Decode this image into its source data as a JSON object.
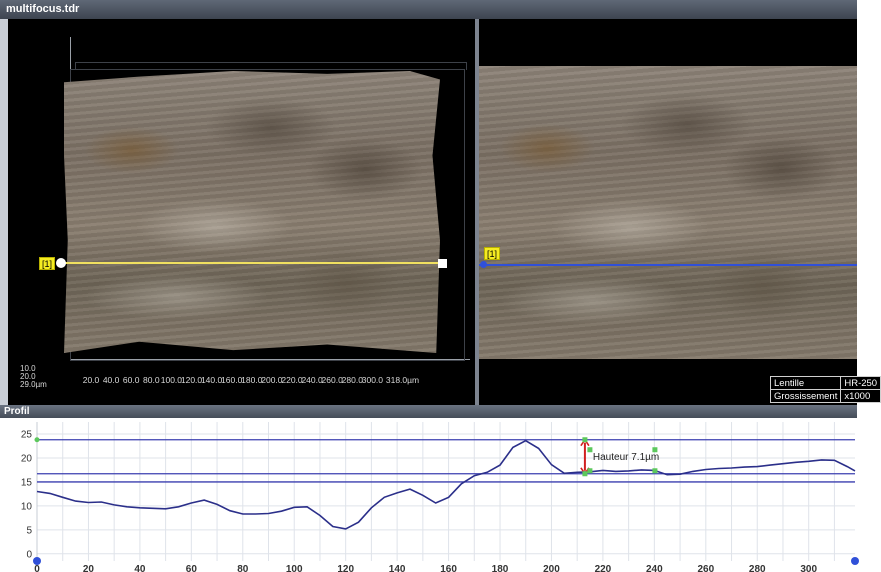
{
  "window": {
    "title": "multifocus.tdr"
  },
  "viewer3d": {
    "x_ticks": [
      "20.0",
      "40.0",
      "60.0",
      "80.0",
      "100.0",
      "120.0",
      "140.0",
      "160.0",
      "180.0",
      "200.0",
      "220.0",
      "240.0",
      "260.0",
      "280.0",
      "300.0",
      "318.0µm"
    ],
    "origin_label_top": "10.0",
    "origin_label_mid": "20.0",
    "origin_label_bottom": "29.0µm",
    "marker_label": "[1]"
  },
  "view2d": {
    "marker_label": "[1]",
    "info": [
      {
        "key": "Lentille",
        "value": "HR-250"
      },
      {
        "key": "Grossissement",
        "value": "x1000"
      }
    ]
  },
  "profile": {
    "title": "Profil",
    "measurement_label": "Hauteur 7.1µm",
    "colors": {
      "curve": "#2b2f8a",
      "ref_line": "#3b3fb0",
      "measure": "#d12020",
      "handle": "#5cc85c"
    }
  },
  "chart_data": {
    "type": "line",
    "x_ticks": [
      0,
      20,
      40,
      60,
      80,
      100,
      120,
      140,
      160,
      180,
      200,
      220,
      240,
      260,
      280,
      300
    ],
    "y_ticks": [
      0,
      5,
      10,
      15,
      20,
      25
    ],
    "xlim": [
      0,
      318
    ],
    "ylim": [
      -1.5,
      27.5
    ],
    "reference_lines": [
      23.8,
      16.7,
      15.0
    ],
    "measurement": {
      "x": 213,
      "y_top": 23.8,
      "y_bottom": 16.7,
      "value_um": 7.1
    },
    "series": [
      {
        "x": [
          0,
          5,
          10,
          15,
          20,
          25,
          30,
          35,
          40,
          45,
          50,
          55,
          60,
          65,
          70,
          75,
          80,
          85,
          90,
          95,
          100,
          105,
          110,
          115,
          120,
          125,
          130,
          135,
          140,
          145,
          150,
          155,
          160,
          165,
          170,
          175,
          180,
          185,
          190,
          195,
          200,
          205,
          210,
          215,
          220,
          225,
          230,
          235,
          240,
          245,
          250,
          255,
          260,
          265,
          270,
          275,
          280,
          285,
          290,
          295,
          300,
          305,
          310,
          315,
          318
        ],
        "y": [
          13.0,
          12.6,
          11.8,
          11.0,
          10.7,
          10.8,
          10.2,
          9.8,
          9.6,
          9.5,
          9.4,
          9.8,
          10.6,
          11.2,
          10.3,
          9.0,
          8.3,
          8.3,
          8.4,
          8.9,
          9.7,
          9.8,
          8.0,
          5.7,
          5.2,
          6.6,
          9.6,
          11.8,
          12.7,
          13.5,
          12.2,
          10.6,
          11.8,
          14.6,
          16.3,
          17.0,
          18.5,
          22.2,
          23.6,
          22.0,
          18.6,
          16.8,
          17.0,
          17.1,
          17.4,
          17.2,
          17.3,
          17.5,
          17.4,
          16.5,
          16.6,
          17.2,
          17.6,
          17.8,
          17.9,
          18.1,
          18.2,
          18.5,
          18.8,
          19.1,
          19.3,
          19.6,
          19.5,
          18.2,
          17.3
        ]
      }
    ]
  }
}
